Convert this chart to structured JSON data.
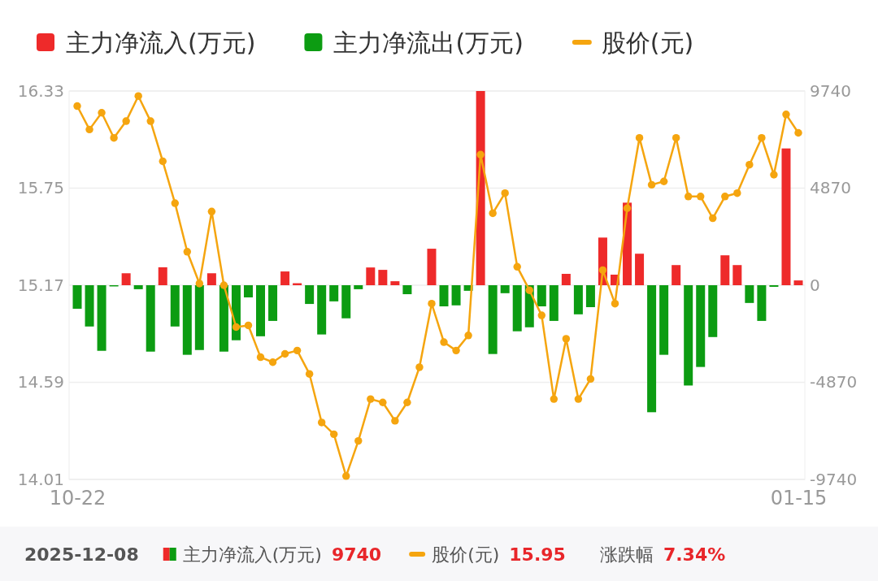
{
  "chart_data": {
    "type": "bar",
    "categories": [
      "10-22",
      null,
      null,
      null,
      null,
      null,
      null,
      null,
      null,
      null,
      null,
      null,
      null,
      null,
      null,
      null,
      null,
      null,
      null,
      null,
      null,
      null,
      null,
      null,
      null,
      null,
      null,
      null,
      null,
      null,
      null,
      null,
      null,
      null,
      null,
      null,
      null,
      null,
      null,
      null,
      null,
      null,
      null,
      null,
      null,
      null,
      null,
      null,
      null,
      null,
      null,
      null,
      null,
      null,
      null,
      null,
      null,
      null,
      null,
      "01-15"
    ],
    "series": [
      {
        "name": "主力净流入(万元)",
        "axis": "y2",
        "color": "#ee2a2a",
        "values": [
          null,
          null,
          null,
          null,
          600,
          null,
          null,
          900,
          null,
          null,
          null,
          600,
          null,
          null,
          null,
          null,
          null,
          690,
          100,
          null,
          null,
          null,
          null,
          null,
          890,
          770,
          200,
          null,
          null,
          1830,
          null,
          null,
          null,
          9740,
          null,
          null,
          null,
          null,
          null,
          null,
          570,
          null,
          null,
          2390,
          530,
          4140,
          1580,
          null,
          null,
          1010,
          null,
          null,
          null,
          1500,
          1010,
          null,
          null,
          null,
          6860,
          240
        ]
      },
      {
        "name": "主力净流出(万元)",
        "axis": "y2",
        "color": "#0c9c12",
        "values": [
          -1180,
          -2070,
          -3290,
          -60,
          null,
          -200,
          -3330,
          null,
          -2070,
          -3490,
          -3250,
          null,
          -3330,
          -2760,
          -610,
          -2560,
          -1790,
          null,
          null,
          -940,
          -2470,
          -810,
          -1660,
          -200,
          null,
          null,
          null,
          -450,
          null,
          null,
          -1060,
          -1010,
          -280,
          null,
          -3450,
          -400,
          -2310,
          -2110,
          -1060,
          -1790,
          null,
          -1460,
          -1100,
          null,
          null,
          null,
          null,
          -6370,
          -3490,
          null,
          -5030,
          -4100,
          -2600,
          null,
          null,
          -890,
          -1790,
          -80,
          null,
          null
        ]
      },
      {
        "name": "股价(元)",
        "type": "line",
        "axis": "y",
        "color": "#f5a50f",
        "values": [
          16.24,
          16.1,
          16.2,
          16.05,
          16.15,
          16.3,
          16.15,
          15.91,
          15.66,
          15.37,
          15.18,
          15.61,
          15.17,
          14.92,
          14.93,
          14.74,
          14.71,
          14.76,
          14.78,
          14.64,
          14.35,
          14.28,
          14.03,
          14.24,
          14.49,
          14.47,
          14.36,
          14.47,
          14.68,
          15.06,
          14.83,
          14.78,
          14.87,
          15.95,
          15.6,
          15.72,
          15.28,
          15.14,
          14.99,
          14.49,
          14.85,
          14.49,
          14.61,
          15.26,
          15.06,
          15.63,
          16.05,
          15.77,
          15.79,
          16.05,
          15.7,
          15.7,
          15.57,
          15.7,
          15.72,
          15.89,
          16.05,
          15.83,
          16.19,
          16.08
        ]
      }
    ],
    "ylim": [
      14.01,
      16.33
    ],
    "yticks": [
      14.01,
      14.59,
      15.17,
      15.75,
      16.33
    ],
    "y2lim": [
      -9740,
      9740
    ],
    "y2ticks": [
      -9740,
      -4870,
      0,
      4870,
      9740
    ],
    "grid": "y",
    "legend": "top",
    "marker": "circle",
    "line_style": "solid",
    "annotations": [
      "2025-12-08",
      "主力净流入(万元)",
      "9740",
      "股价(元)",
      "15.95",
      "涨跌幅",
      "7.34%"
    ]
  }
}
